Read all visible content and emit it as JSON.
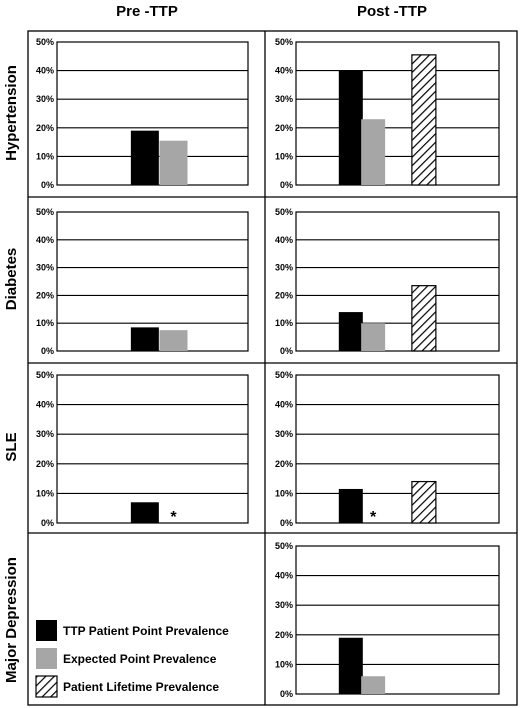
{
  "columns": [
    "Pre -TTP",
    "Post -TTP"
  ],
  "rows": [
    "Hypertension",
    "Diabetes",
    "SLE",
    "Major Depression"
  ],
  "yticks": [
    "50%",
    "40%",
    "30%",
    "20%",
    "10%",
    "0%"
  ],
  "legend": [
    {
      "label": "TTP Patient Point Prevalence",
      "style": "solid",
      "color": "#000000"
    },
    {
      "label": "Expected Point Prevalence",
      "style": "solid",
      "color": "#a6a6a6"
    },
    {
      "label": "Patient Lifetime Prevalence",
      "style": "hatched",
      "color": "#000000"
    }
  ],
  "chart_data": [
    {
      "type": "bar",
      "row": "Hypertension",
      "column": "Pre -TTP",
      "ylim": [
        0,
        50
      ],
      "series": [
        {
          "name": "TTP Patient Point Prevalence",
          "value": 19
        },
        {
          "name": "Expected Point Prevalence",
          "value": 15.5
        }
      ]
    },
    {
      "type": "bar",
      "row": "Hypertension",
      "column": "Post -TTP",
      "ylim": [
        0,
        50
      ],
      "series": [
        {
          "name": "TTP Patient Point Prevalence",
          "value": 40
        },
        {
          "name": "Expected Point Prevalence",
          "value": 23
        },
        {
          "name": "Patient Lifetime Prevalence",
          "value": 45.5
        }
      ]
    },
    {
      "type": "bar",
      "row": "Diabetes",
      "column": "Pre -TTP",
      "ylim": [
        0,
        50
      ],
      "series": [
        {
          "name": "TTP Patient Point Prevalence",
          "value": 8.5
        },
        {
          "name": "Expected Point Prevalence",
          "value": 7.5
        }
      ]
    },
    {
      "type": "bar",
      "row": "Diabetes",
      "column": "Post -TTP",
      "ylim": [
        0,
        50
      ],
      "series": [
        {
          "name": "TTP Patient Point Prevalence",
          "value": 14
        },
        {
          "name": "Expected Point Prevalence",
          "value": 10
        },
        {
          "name": "Patient Lifetime Prevalence",
          "value": 23.5
        }
      ]
    },
    {
      "type": "bar",
      "row": "SLE",
      "column": "Pre -TTP",
      "ylim": [
        0,
        50
      ],
      "series": [
        {
          "name": "TTP Patient Point Prevalence",
          "value": 7
        },
        {
          "name": "Expected Point Prevalence",
          "value": 0,
          "annotation": "*"
        }
      ]
    },
    {
      "type": "bar",
      "row": "SLE",
      "column": "Post -TTP",
      "ylim": [
        0,
        50
      ],
      "series": [
        {
          "name": "TTP Patient Point Prevalence",
          "value": 11.5
        },
        {
          "name": "Expected Point Prevalence",
          "value": 0,
          "annotation": "*"
        },
        {
          "name": "Patient Lifetime Prevalence",
          "value": 14
        }
      ]
    },
    {
      "type": "bar",
      "row": "Major Depression",
      "column": "Post -TTP",
      "ylim": [
        0,
        50
      ],
      "series": [
        {
          "name": "TTP Patient Point Prevalence",
          "value": 19
        },
        {
          "name": "Expected Point Prevalence",
          "value": 6
        }
      ]
    }
  ]
}
